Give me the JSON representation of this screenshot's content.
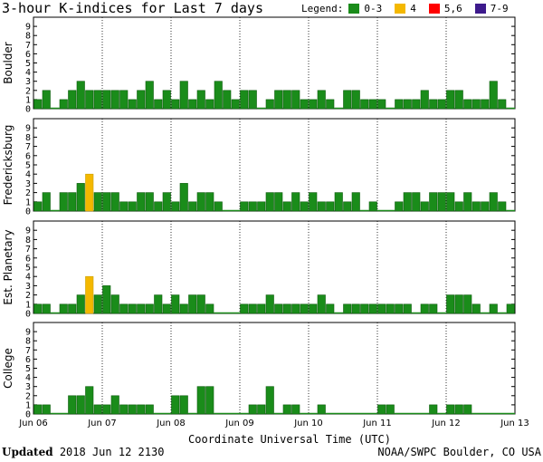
{
  "title": "3-hour K-indices for Last 7 days",
  "legend": {
    "label": "Legend:",
    "items": [
      {
        "label": "0-3",
        "color": "#1a8c1a"
      },
      {
        "label": "4",
        "color": "#f4b800"
      },
      {
        "label": "5,6",
        "color": "#ff0000"
      },
      {
        "label": "7-9",
        "color": "#3d1a8c"
      }
    ]
  },
  "footer": {
    "updated_label": "Updated",
    "updated_value": "2018 Jun 12 2130",
    "source": "NOAA/SWPC Boulder, CO USA"
  },
  "chart_data": {
    "type": "bar",
    "xlabel": "Coordinate Universal Time (UTC)",
    "x_ticks": [
      "Jun 06",
      "Jun 07",
      "Jun 08",
      "Jun 09",
      "Jun 10",
      "Jun 11",
      "Jun 12",
      "Jun 13"
    ],
    "ylim": [
      0,
      9
    ],
    "y_ticks": [
      0,
      1,
      2,
      3,
      4,
      5,
      6,
      7,
      8,
      9
    ],
    "bars_per_day": 8,
    "color_scale": {
      "0-3": "#1a8c1a",
      "4": "#f4b800",
      "5,6": "#ff0000",
      "7-9": "#3d1a8c"
    },
    "series": [
      {
        "name": "Boulder",
        "values": [
          1,
          2,
          0,
          1,
          2,
          3,
          2,
          2,
          2,
          2,
          2,
          1,
          2,
          3,
          1,
          2,
          1,
          3,
          1,
          2,
          1,
          3,
          2,
          1,
          2,
          2,
          0,
          1,
          2,
          2,
          2,
          1,
          1,
          2,
          1,
          0,
          2,
          2,
          1,
          1,
          1,
          0,
          1,
          1,
          1,
          2,
          1,
          1,
          2,
          2,
          1,
          1,
          1,
          3,
          1,
          0
        ]
      },
      {
        "name": "Fredericksburg",
        "values": [
          1,
          2,
          0,
          2,
          2,
          3,
          4,
          2,
          2,
          2,
          1,
          1,
          2,
          2,
          1,
          2,
          1,
          3,
          1,
          2,
          2,
          1,
          0,
          0,
          1,
          1,
          1,
          2,
          2,
          1,
          2,
          1,
          2,
          1,
          1,
          2,
          1,
          2,
          0,
          1,
          0,
          0,
          1,
          2,
          2,
          1,
          2,
          2,
          2,
          1,
          2,
          1,
          1,
          2,
          1,
          0
        ]
      },
      {
        "name": "Est. Planetary",
        "values": [
          1,
          1,
          0,
          1,
          1,
          2,
          4,
          2,
          3,
          2,
          1,
          1,
          1,
          1,
          2,
          1,
          2,
          1,
          2,
          2,
          1,
          0,
          0,
          0,
          1,
          1,
          1,
          2,
          1,
          1,
          1,
          1,
          1,
          2,
          1,
          0,
          1,
          1,
          1,
          1,
          1,
          1,
          1,
          1,
          0,
          1,
          1,
          0,
          2,
          2,
          2,
          1,
          0,
          1,
          0,
          1
        ]
      },
      {
        "name": "College",
        "values": [
          1,
          1,
          0,
          0,
          2,
          2,
          3,
          1,
          1,
          2,
          1,
          1,
          1,
          1,
          0,
          0,
          2,
          2,
          0,
          3,
          3,
          0,
          0,
          0,
          0,
          1,
          1,
          3,
          0,
          1,
          1,
          0,
          0,
          1,
          0,
          0,
          0,
          0,
          0,
          0,
          1,
          1,
          0,
          0,
          0,
          0,
          1,
          0,
          1,
          1,
          1,
          0,
          0,
          0,
          0,
          0
        ]
      }
    ]
  }
}
